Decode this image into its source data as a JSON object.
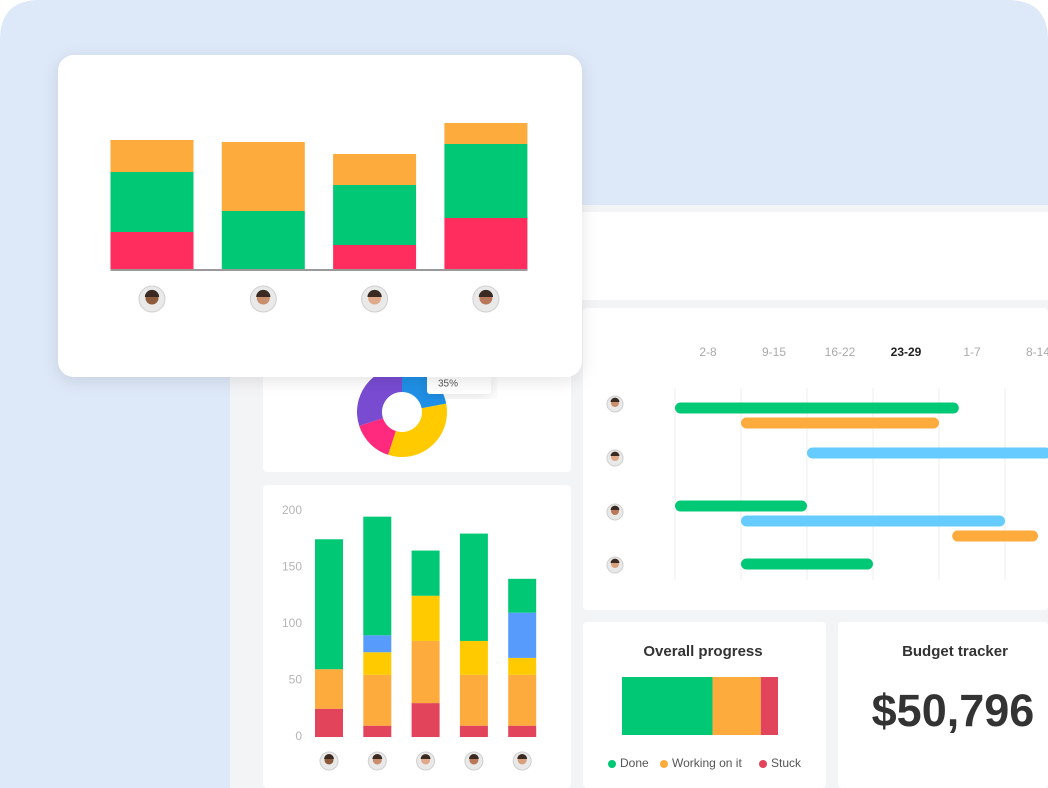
{
  "chart_data": [
    {
      "type": "bar",
      "stacked": true,
      "categories": [
        null,
        null,
        null,
        null
      ],
      "ylim": [
        0,
        150
      ],
      "series": [
        {
          "color": "#ff2d5d",
          "values": [
            38,
            0,
            25,
            52
          ]
        },
        {
          "color": "#00c875",
          "values": [
            60,
            59,
            60,
            74
          ]
        },
        {
          "color": "#fdab3d",
          "values": [
            32,
            69,
            31,
            21
          ]
        }
      ]
    },
    {
      "type": "pie",
      "donut": true,
      "values": [
        22,
        33,
        15,
        30
      ],
      "colors": [
        "#1f8fe5",
        "#ffcb00",
        "#ff2a7d",
        "#784bd1"
      ],
      "annotation": "35%"
    },
    {
      "type": "bar",
      "stacked": true,
      "categories": [
        null,
        null,
        null,
        null,
        null
      ],
      "ylim": [
        0,
        200
      ],
      "yticks": [
        0,
        50,
        100,
        150,
        200
      ],
      "series": [
        {
          "color": "#e2445c",
          "values": [
            25,
            10,
            30,
            10,
            10
          ]
        },
        {
          "color": "#fdab3d",
          "values": [
            35,
            45,
            55,
            45,
            45
          ]
        },
        {
          "color": "#ffcb00",
          "values": [
            0,
            20,
            40,
            30,
            15
          ]
        },
        {
          "color": "#579bfc",
          "values": [
            0,
            15,
            0,
            0,
            40
          ]
        },
        {
          "color": "#00c875",
          "values": [
            115,
            105,
            40,
            95,
            30
          ]
        }
      ]
    },
    {
      "type": "gantt",
      "categories": [
        "2-8",
        "9-15",
        "16-22",
        "23-29",
        "1-7",
        "8-14"
      ],
      "current_index": 3,
      "xlim": [
        0,
        6
      ],
      "rows": [
        [
          {
            "start": 0,
            "end": 4.3,
            "color": "#00c875"
          },
          {
            "start": 1,
            "end": 4,
            "color": "#fdab3d"
          }
        ],
        [
          {
            "start": 2,
            "end": 5.7,
            "color": "#66ccff"
          }
        ],
        [
          {
            "start": 0,
            "end": 2,
            "color": "#00c875"
          },
          {
            "start": 1,
            "end": 5,
            "color": "#66ccff"
          },
          {
            "start": 4.2,
            "end": 5.5,
            "color": "#fdab3d"
          }
        ],
        [
          {
            "start": 1,
            "end": 3,
            "color": "#00c875"
          }
        ]
      ]
    },
    {
      "type": "bar",
      "orientation": "horizontal",
      "stacked": true,
      "title": "Overall progress",
      "xlim": [
        0,
        100
      ],
      "series": [
        {
          "name": "Done",
          "color": "#00c875",
          "values": [
            58
          ]
        },
        {
          "name": "Working on it",
          "color": "#fdab3d",
          "values": [
            31
          ]
        },
        {
          "name": "Stuck",
          "color": "#e2445c",
          "values": [
            11
          ]
        }
      ]
    }
  ],
  "budget": {
    "title": "Budget tracker",
    "value": "$50,796"
  }
}
